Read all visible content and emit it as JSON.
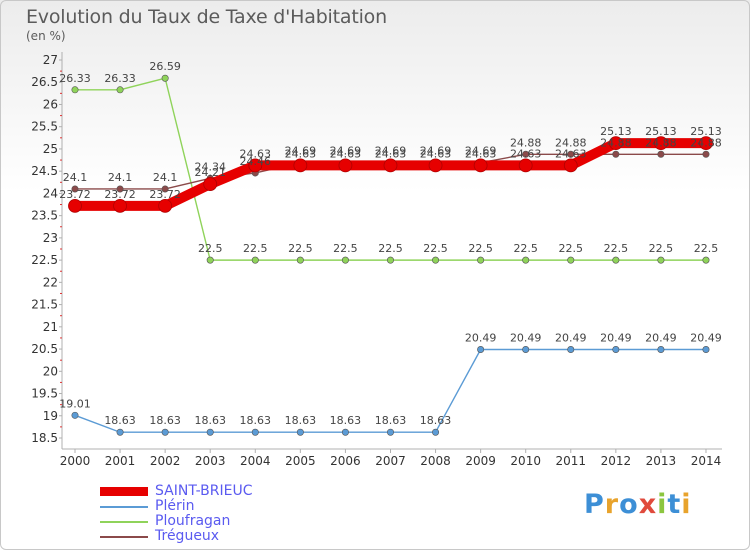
{
  "header": {
    "title": "Evolution du Taux de Taxe d'Habitation",
    "unit": "(en %)"
  },
  "logo": {
    "text": "Proxiti",
    "letters": [
      {
        "ch": "P",
        "color": "#3d8fd6"
      },
      {
        "ch": "r",
        "color": "#e8a32c"
      },
      {
        "ch": "o",
        "color": "#3d8fd6"
      },
      {
        "ch": "x",
        "color": "#e04a3c"
      },
      {
        "ch": "i",
        "color": "#8cc63f"
      },
      {
        "ch": "t",
        "color": "#3d8fd6"
      },
      {
        "ch": "i",
        "color": "#e8a32c"
      }
    ]
  },
  "chart_data": {
    "type": "line",
    "title": "Evolution du Taux de Taxe d'Habitation",
    "ylabel": "(en %)",
    "xlabel": "",
    "x": [
      2000,
      2001,
      2002,
      2003,
      2004,
      2005,
      2006,
      2007,
      2008,
      2009,
      2010,
      2011,
      2012,
      2013,
      2014
    ],
    "ylim": [
      18.5,
      27
    ],
    "yticks": [
      18.5,
      19,
      19.5,
      20,
      20.5,
      21,
      21.5,
      22,
      22.5,
      23,
      23.5,
      24,
      24.5,
      25,
      25.5,
      26,
      26.5,
      27
    ],
    "grid": false,
    "legend_position": "bottom-left",
    "series": [
      {
        "name": "SAINT-BRIEUC",
        "color": "#e60000",
        "values": [
          23.72,
          23.72,
          23.72,
          24.21,
          24.63,
          24.63,
          24.63,
          24.63,
          24.63,
          24.63,
          24.63,
          24.63,
          25.13,
          25.13,
          25.13
        ],
        "labels": [
          "23.72",
          "23.72",
          "23.72",
          "24.21",
          "24.63",
          "24.63",
          "24.63",
          "24.63",
          "24.63",
          "24.63",
          "24.63",
          "24.63",
          "25.13",
          "25.13",
          "25.13"
        ]
      },
      {
        "name": "Plérin",
        "color": "#5b9bd5",
        "values": [
          19.01,
          18.63,
          18.63,
          18.63,
          18.63,
          18.63,
          18.63,
          18.63,
          18.63,
          20.49,
          20.49,
          20.49,
          20.49,
          20.49,
          20.49
        ],
        "labels": [
          "19.01",
          "18.63",
          "18.63",
          "18.63",
          "18.63",
          "18.63",
          "18.63",
          "18.63",
          "18.63",
          "20.49",
          "20.49",
          "20.49",
          "20.49",
          "20.49",
          "20.49"
        ]
      },
      {
        "name": "Ploufragan",
        "color": "#8fd35a",
        "values": [
          26.33,
          26.33,
          26.59,
          22.5,
          22.5,
          22.5,
          22.5,
          22.5,
          22.5,
          22.5,
          22.5,
          22.5,
          22.5,
          22.5,
          22.5
        ],
        "labels": [
          "26.33",
          "26.33",
          "26.59",
          "22.5",
          "22.5",
          "22.5",
          "22.5",
          "22.5",
          "22.5",
          "22.5",
          "22.5",
          "22.5",
          "22.5",
          "22.5",
          "22.5"
        ]
      },
      {
        "name": "Trégueux",
        "color": "#8b4a4a",
        "values": [
          24.1,
          24.1,
          24.1,
          24.34,
          24.46,
          24.69,
          24.69,
          24.69,
          24.69,
          24.69,
          24.88,
          24.88,
          24.88,
          24.88,
          24.88
        ],
        "labels": [
          "24.1",
          "24.1",
          "24.1",
          "24.34",
          "24.46",
          "24.69",
          "24.69",
          "24.69",
          "24.69",
          "24.69",
          "24.88",
          "24.88",
          "24.88",
          "24.88",
          "24.88"
        ]
      }
    ]
  }
}
